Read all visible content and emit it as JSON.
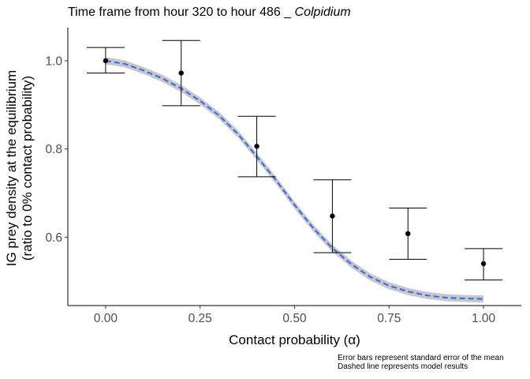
{
  "title": {
    "prefix": "Time frame from hour 320  to hour  486 _ ",
    "species": "Colpidium"
  },
  "footnotes": [
    "Error bars represent standard error of the mean",
    "Dashed line represents model results"
  ],
  "chart_data": {
    "type": "scatter",
    "xlabel": "Contact probability (α)",
    "ylabel": [
      "IG prey density at the equilibrium",
      "(ratio to 0% contact probability)"
    ],
    "xlim": [
      -0.1,
      1.1
    ],
    "ylim": [
      0.445,
      1.075
    ],
    "x_ticks": [
      0.0,
      0.25,
      0.5,
      0.75,
      1.0
    ],
    "x_tick_labels": [
      "0.00",
      "0.25",
      "0.50",
      "0.75",
      "1.00"
    ],
    "y_ticks": [
      0.6,
      0.8,
      1.0
    ],
    "y_tick_labels": [
      "0.6",
      "0.8",
      "1.0"
    ],
    "grid": false,
    "points": {
      "x": [
        0.0,
        0.2,
        0.4,
        0.6,
        0.8,
        1.0
      ],
      "y": [
        1.0,
        0.972,
        0.806,
        0.648,
        0.608,
        0.54
      ],
      "err_low": [
        0.972,
        0.898,
        0.737,
        0.565,
        0.55,
        0.503
      ],
      "err_high": [
        1.03,
        1.046,
        0.874,
        0.73,
        0.666,
        0.574
      ],
      "color": "#000000"
    },
    "model": {
      "x": [
        0.0,
        0.05,
        0.1,
        0.15,
        0.2,
        0.25,
        0.3,
        0.35,
        0.4,
        0.45,
        0.5,
        0.55,
        0.6,
        0.65,
        0.7,
        0.75,
        0.8,
        0.85,
        0.9,
        0.95,
        1.0
      ],
      "y": [
        1.0,
        0.993,
        0.978,
        0.96,
        0.937,
        0.909,
        0.876,
        0.834,
        0.783,
        0.73,
        0.673,
        0.62,
        0.575,
        0.539,
        0.51,
        0.49,
        0.477,
        0.468,
        0.463,
        0.461,
        0.46
      ],
      "band_halfwidth": 0.008,
      "line_color": "#3366ff",
      "band_color": "#bdbdbd",
      "line_style": "dashed"
    }
  }
}
